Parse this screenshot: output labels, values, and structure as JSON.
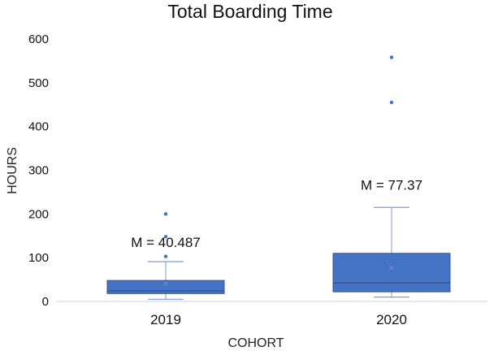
{
  "chart_data": {
    "type": "box",
    "title": "Total Boarding Time",
    "xlabel": "COHORT",
    "ylabel": "HOURS",
    "ylim": [
      0,
      600
    ],
    "yticks": [
      "0",
      "100",
      "200",
      "300",
      "400",
      "500",
      "600"
    ],
    "grid": false,
    "categories": [
      "2019",
      "2020"
    ],
    "boxes": [
      {
        "category": "2019",
        "whisker_low": 5,
        "q1": 18,
        "median": 24,
        "q3": 48,
        "whisker_high": 91,
        "mean": 40.487,
        "outliers": [
          103,
          148,
          200
        ],
        "mean_label": "M = 40.487"
      },
      {
        "category": "2020",
        "whisker_low": 10,
        "q1": 22,
        "median": 42,
        "q3": 110,
        "whisker_high": 215,
        "mean": 77.37,
        "outliers": [
          455,
          558
        ],
        "mean_label": "M = 77.37"
      }
    ],
    "colors": {
      "box_fill": "#4472C4",
      "box_edge": "#2F5597",
      "point": "#4472C4"
    }
  }
}
